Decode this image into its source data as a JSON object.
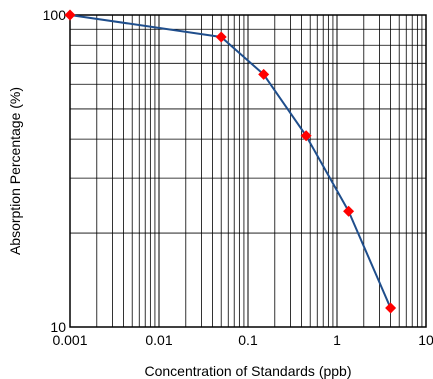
{
  "chart_data": {
    "type": "line",
    "title": "",
    "xlabel": "Concentration of Standards (ppb)",
    "ylabel": "Absorption Percentage (%)",
    "xscale": "log",
    "yscale": "log",
    "xlim": [
      0.001,
      10
    ],
    "ylim": [
      10,
      100
    ],
    "x_tick_labels": [
      "0.001",
      "0.01",
      "0.1",
      "1",
      "10"
    ],
    "y_tick_labels": [
      "10",
      "100"
    ],
    "grid": true,
    "legend": "none",
    "series": [
      {
        "x": [
          0.001,
          0.05,
          0.15,
          0.45,
          1.35,
          4.0
        ],
        "y": [
          100,
          85,
          64.5,
          41,
          23.5,
          11.5
        ],
        "line_color": "#1f4e8c",
        "marker": "diamond",
        "marker_color": "#ff0000"
      }
    ]
  }
}
